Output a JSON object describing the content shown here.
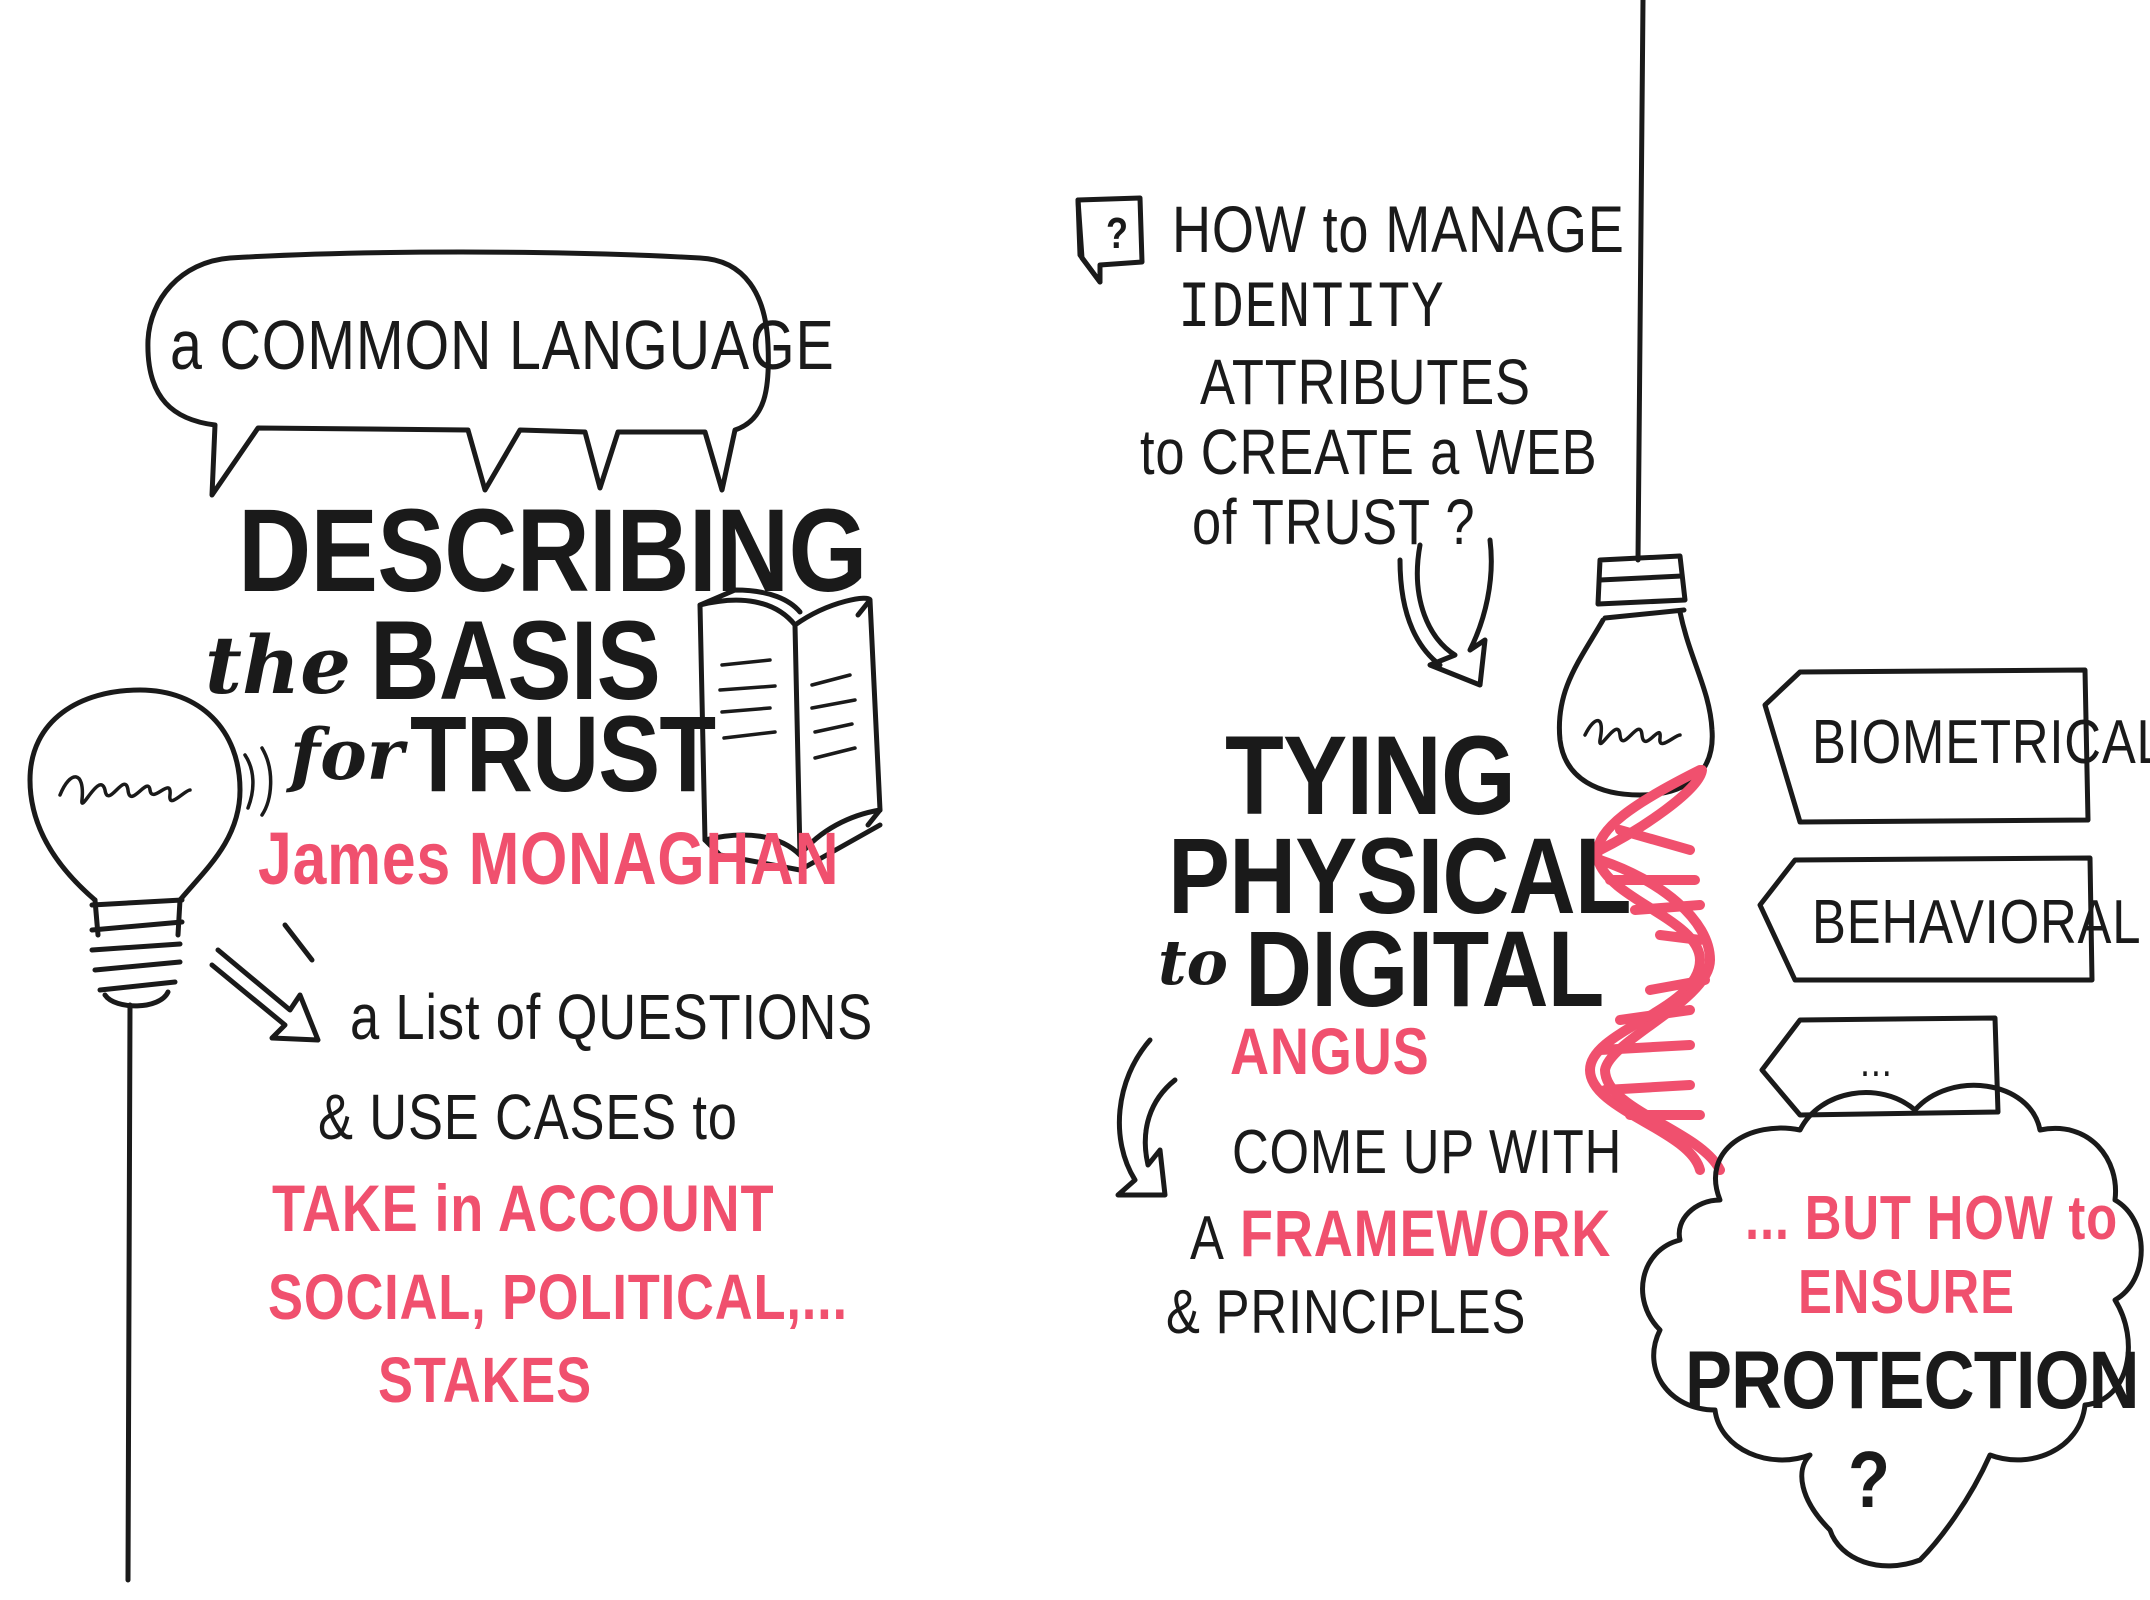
{
  "colors": {
    "ink": "#1a1a1a",
    "accent": "#f0506e",
    "background": "#ffffff"
  },
  "left": {
    "bubble_text": "a COMMON LANGUAGE",
    "title_line1": "DESCRIBING",
    "title_line2_script": "the",
    "title_line2_bold": "BASIS",
    "title_line3_script": "for",
    "title_line3_bold": "TRUST",
    "speaker": "James MONAGHAN",
    "line1": "a List of QUESTIONS",
    "line2": "& USE CASES to",
    "highlight1": "TAKE in ACCOUNT",
    "highlight2": "SOCIAL, POLITICAL,...",
    "highlight3": "STAKES",
    "icons": [
      "speech-bubble-icon",
      "open-book-icon",
      "lightbulb-icon",
      "arrow-icon"
    ]
  },
  "right": {
    "question1": "HOW to MANAGE",
    "question2": "IDENTITY",
    "question3": "ATTRIBUTES",
    "question4": "to CREATE a WEB",
    "question5": "of TRUST ?",
    "question_box": "?",
    "title_line1": "TYING",
    "title_line2": "PHYSICAL",
    "title_line3_script": "to",
    "title_line3_bold": "DIGITAL",
    "speaker": "ANGUS",
    "line1": "COME UP WITH",
    "line2_prefix": "A",
    "line2_highlight": "FRAMEWORK",
    "line3": "& PRINCIPLES",
    "tag1": "BIOMETRICAL ?",
    "tag2": "BEHAVIORAL ?",
    "tag3": "...",
    "cloud1": "... BUT HOW to",
    "cloud2": "ENSURE",
    "cloud3": "PROTECTION",
    "cloud4": "?",
    "icons": [
      "hanging-lightbulb-icon",
      "dna-helix-icon",
      "arrow-icon",
      "question-box-icon",
      "thought-cloud-icon",
      "tag-arrow-icon"
    ]
  }
}
